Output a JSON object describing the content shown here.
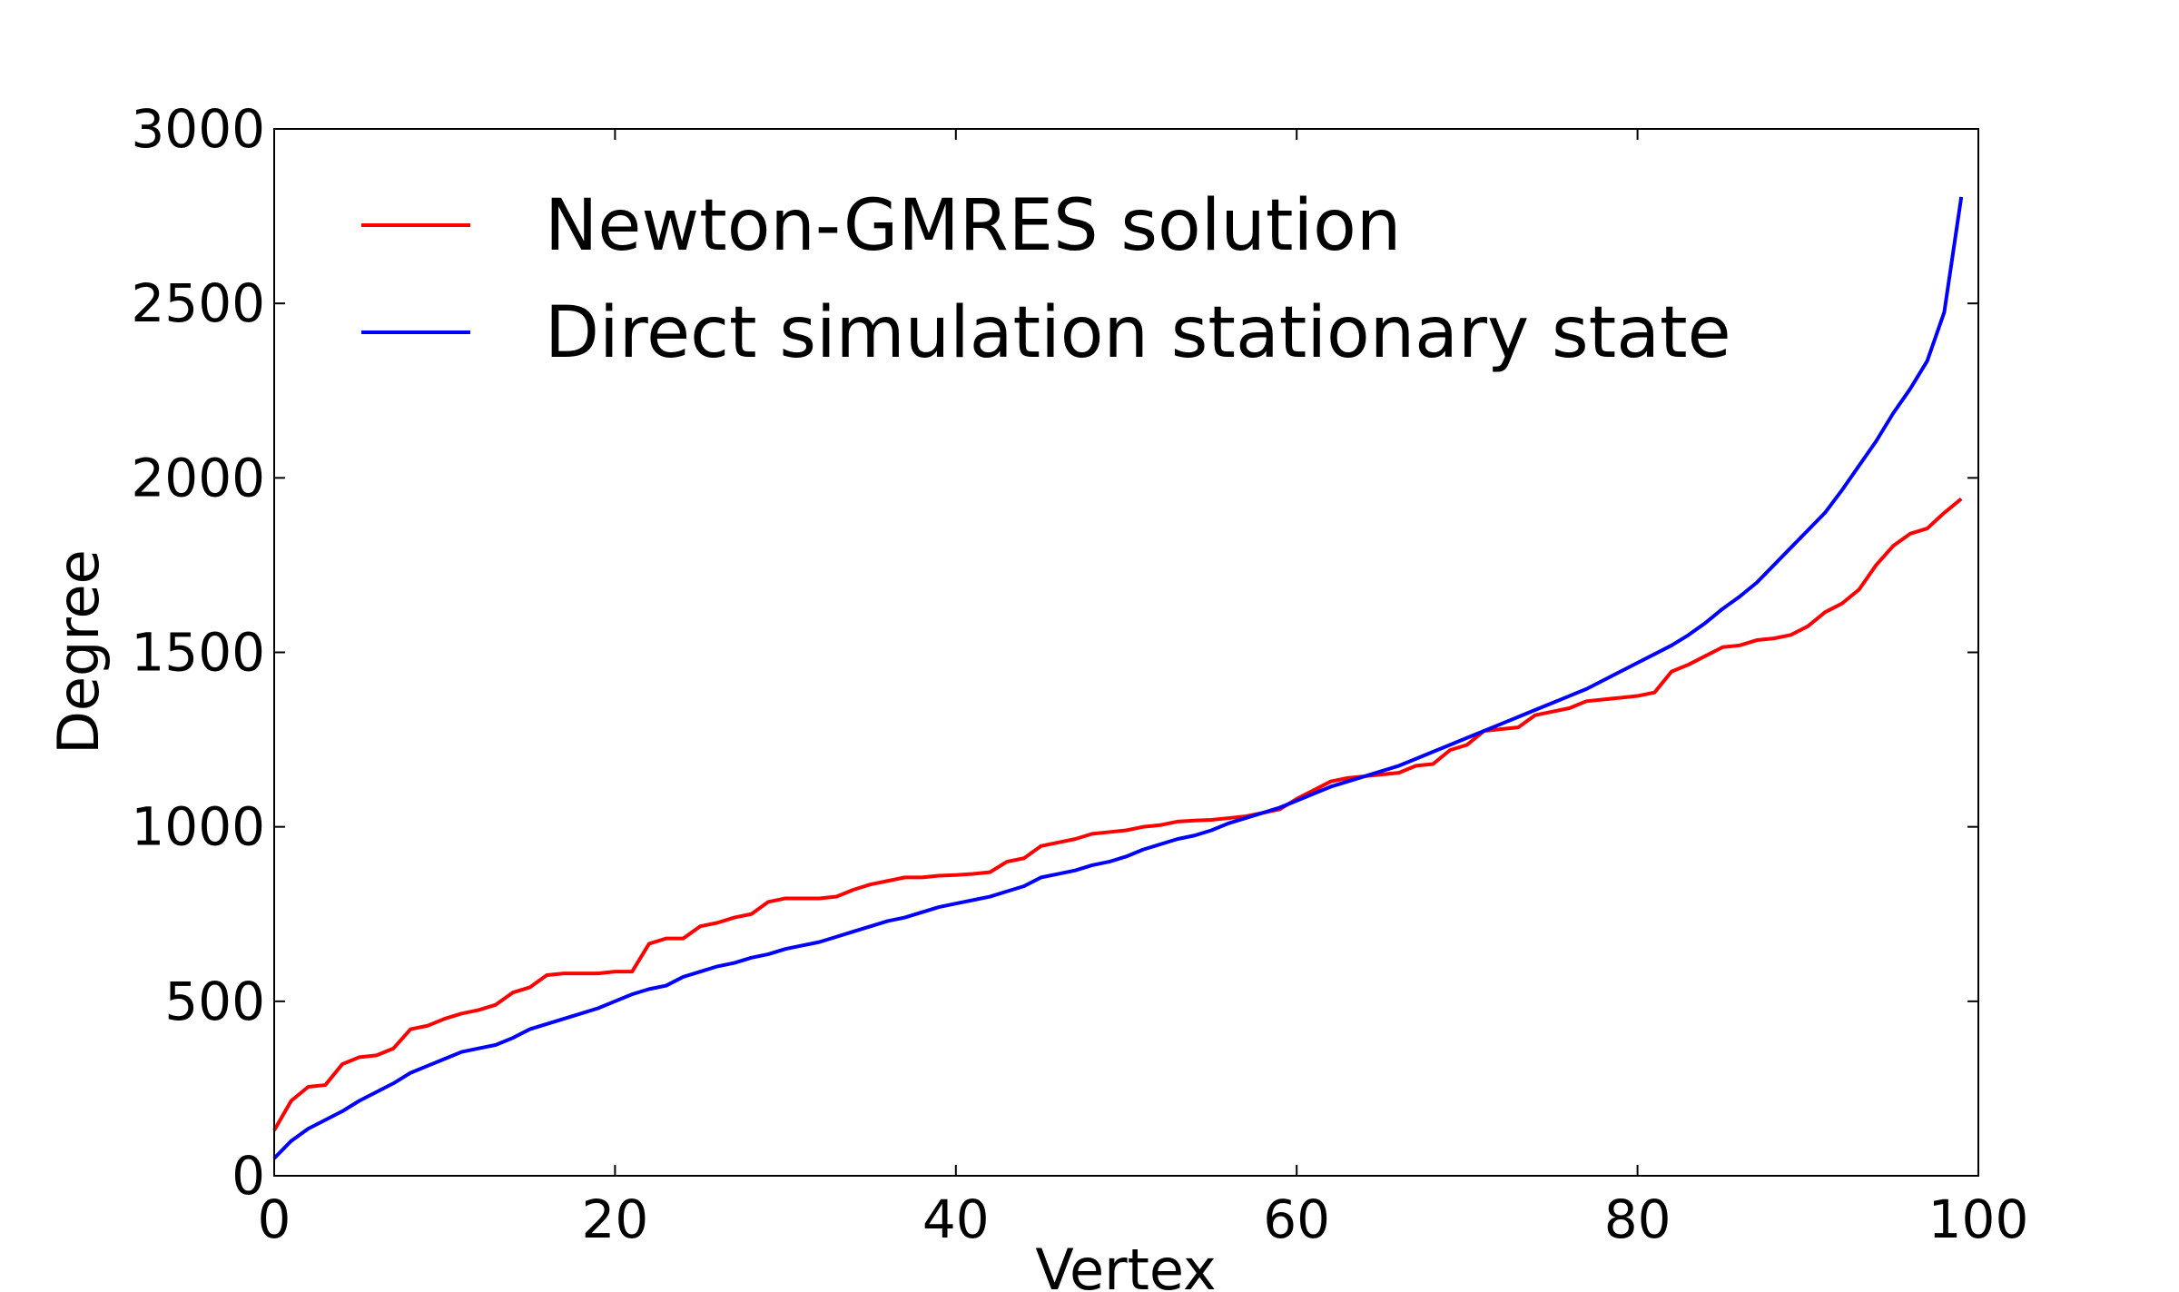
{
  "chart_data": {
    "type": "line",
    "title": "",
    "xlabel": "Vertex",
    "ylabel": "Degree",
    "xlim": [
      0,
      100
    ],
    "ylim": [
      0,
      3000
    ],
    "xticks": [
      "0",
      "20",
      "40",
      "60",
      "80",
      "100"
    ],
    "yticks": [
      "0",
      "500",
      "1000",
      "1500",
      "2000",
      "2500",
      "3000"
    ],
    "grid": false,
    "legend_position": "top-left",
    "x": [
      0,
      1,
      2,
      3,
      4,
      5,
      6,
      7,
      8,
      9,
      10,
      11,
      12,
      13,
      14,
      15,
      16,
      17,
      18,
      19,
      20,
      21,
      22,
      23,
      24,
      25,
      26,
      27,
      28,
      29,
      30,
      31,
      32,
      33,
      34,
      35,
      36,
      37,
      38,
      39,
      40,
      41,
      42,
      43,
      44,
      45,
      46,
      47,
      48,
      49,
      50,
      51,
      52,
      53,
      54,
      55,
      56,
      57,
      58,
      59,
      60,
      61,
      62,
      63,
      64,
      65,
      66,
      67,
      68,
      69,
      70,
      71,
      72,
      73,
      74,
      75,
      76,
      77,
      78,
      79,
      80,
      81,
      82,
      83,
      84,
      85,
      86,
      87,
      88,
      89,
      90,
      91,
      92,
      93,
      94,
      95,
      96,
      97,
      98,
      99
    ],
    "series": [
      {
        "name": "Newton-GMRES solution",
        "color": "#ff0000",
        "values": [
          130,
          215,
          255,
          260,
          320,
          340,
          345,
          365,
          420,
          430,
          450,
          465,
          475,
          490,
          525,
          540,
          575,
          580,
          580,
          580,
          585,
          585,
          665,
          680,
          680,
          715,
          725,
          740,
          750,
          785,
          795,
          795,
          795,
          800,
          820,
          835,
          845,
          855,
          855,
          860,
          862,
          865,
          870,
          900,
          910,
          945,
          955,
          965,
          980,
          985,
          990,
          1000,
          1005,
          1015,
          1018,
          1020,
          1025,
          1030,
          1040,
          1050,
          1080,
          1105,
          1130,
          1140,
          1145,
          1150,
          1155,
          1175,
          1180,
          1220,
          1235,
          1275,
          1280,
          1285,
          1320,
          1330,
          1340,
          1360,
          1365,
          1370,
          1375,
          1385,
          1445,
          1465,
          1490,
          1515,
          1520,
          1535,
          1540,
          1550,
          1575,
          1615,
          1640,
          1680,
          1750,
          1805,
          1840,
          1855,
          1900,
          1940
        ]
      },
      {
        "name": "Direct simulation stationary state",
        "color": "#0000ff",
        "values": [
          50,
          100,
          135,
          160,
          185,
          215,
          240,
          265,
          295,
          315,
          335,
          355,
          365,
          375,
          395,
          420,
          435,
          450,
          465,
          480,
          500,
          520,
          535,
          545,
          570,
          585,
          600,
          610,
          625,
          635,
          650,
          660,
          670,
          685,
          700,
          715,
          730,
          740,
          755,
          770,
          780,
          790,
          800,
          815,
          830,
          855,
          865,
          875,
          890,
          900,
          915,
          935,
          950,
          965,
          975,
          990,
          1010,
          1025,
          1040,
          1055,
          1075,
          1095,
          1115,
          1130,
          1145,
          1160,
          1175,
          1195,
          1215,
          1235,
          1255,
          1275,
          1295,
          1315,
          1335,
          1355,
          1375,
          1395,
          1420,
          1445,
          1470,
          1495,
          1520,
          1550,
          1585,
          1625,
          1660,
          1700,
          1750,
          1800,
          1850,
          1900,
          1965,
          2035,
          2105,
          2185,
          2255,
          2335,
          2475,
          2805
        ]
      }
    ]
  }
}
